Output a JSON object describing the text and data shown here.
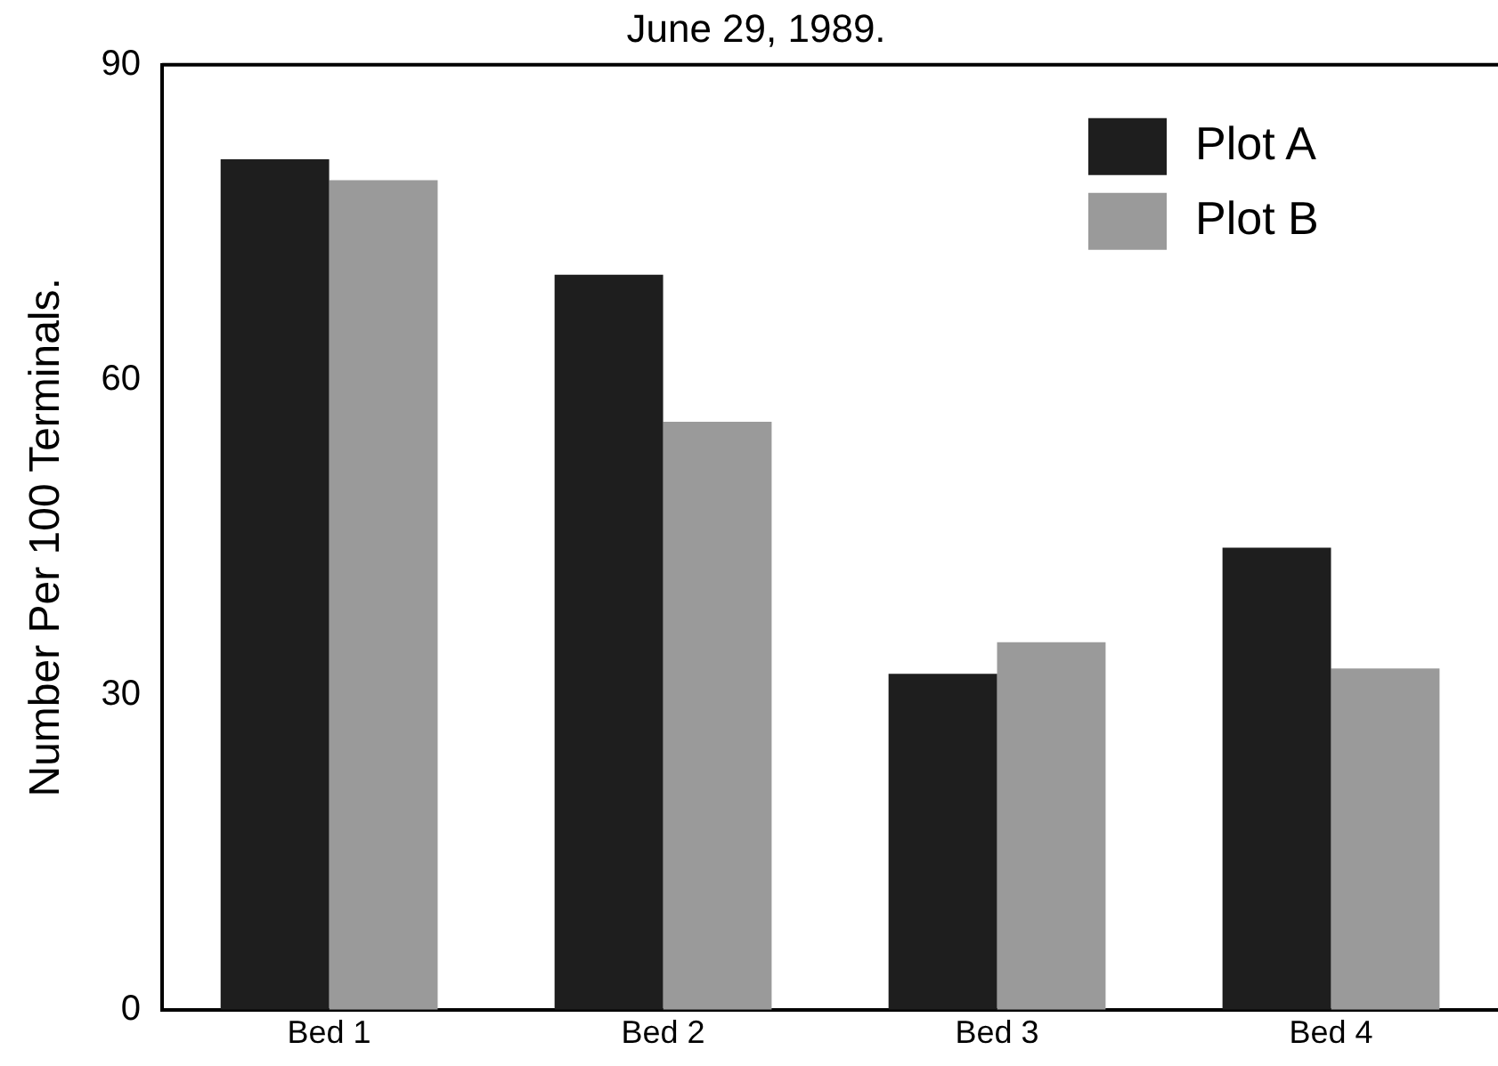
{
  "chart_data": {
    "type": "bar",
    "title": "June 29, 1989.",
    "ylabel": "Number Per 100 Terminals.",
    "categories": [
      "Bed 1",
      "Bed 2",
      "Bed 3",
      "Bed 4"
    ],
    "series": [
      {
        "name": "Plot A",
        "color": "#1e1e1e",
        "values": [
          81,
          70,
          32,
          44
        ]
      },
      {
        "name": "Plot B",
        "color": "#9a9a9a",
        "values": [
          79,
          56,
          35,
          32.5
        ]
      }
    ],
    "ylim": [
      0,
      90
    ],
    "yticks": [
      0,
      30,
      60,
      90
    ],
    "grid": false,
    "legend": "top right"
  }
}
